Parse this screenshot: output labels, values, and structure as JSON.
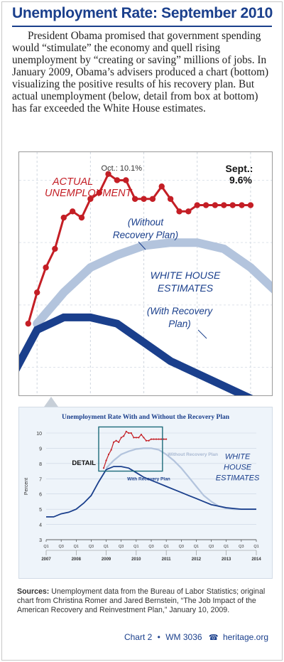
{
  "header": {
    "title": "Unemployment Rate: September 2010",
    "intro": "President Obama promised that government spending would “stimulate” the economy and quell rising unemployment by “creating or saving” millions of jobs. In January 2009, Obama’s advisers produced a chart (bottom) visualizing the positive results of his recovery plan. But actual unemployment (below, detail from box at bottom) has far exceeded the White House estimates."
  },
  "detail_chart": {
    "labels": {
      "actual_line1": "ACTUAL",
      "actual_line2": "UNEMPLOYMENT",
      "peak": "Oct.: 10.1%",
      "latest_line1": "Sept.:",
      "latest_line2": "9.6%",
      "without_line1": "(Without",
      "without_line2": "Recovery Plan)",
      "wh_line1": "WHITE HOUSE",
      "wh_line2": "ESTIMATES",
      "with_line1": "(With Recovery",
      "with_line2": "Plan)"
    },
    "colors": {
      "actual": "#c41e25",
      "without": "#b3c4dd",
      "with": "#1a3f8c"
    }
  },
  "chart_data": {
    "type": "line",
    "title": "Unemployment Rate With and Without the Recovery Plan",
    "ylabel": "Percent",
    "ylim": [
      3,
      10
    ],
    "yticks": [
      "3",
      "4",
      "5",
      "6",
      "7",
      "8",
      "9",
      "10"
    ],
    "xlim": [
      0,
      28
    ],
    "quarter_ticks": [
      "Q1",
      "Q3",
      "Q1",
      "Q3",
      "Q1",
      "Q3",
      "Q1",
      "Q3",
      "Q1",
      "Q3",
      "Q1",
      "Q3",
      "Q1",
      "Q3",
      "Q1"
    ],
    "years": [
      "2007",
      "2008",
      "2009",
      "2010",
      "2011",
      "2012",
      "2013",
      "2014"
    ],
    "detail_label": "DETAIL",
    "wh_label_line1": "WHITE",
    "wh_label_line2": "HOUSE",
    "wh_label_line3": "ESTIMATES",
    "series": [
      {
        "name": "Without Recovery Plan",
        "color": "#b3c4dd",
        "x": [
          8,
          9,
          10,
          11,
          12,
          13,
          14,
          15,
          16,
          17,
          18,
          19,
          20,
          21,
          22,
          23,
          24,
          25,
          26,
          27,
          28
        ],
        "values": [
          7.7,
          8.2,
          8.6,
          8.8,
          8.95,
          9.0,
          9.0,
          8.9,
          8.6,
          8.2,
          7.7,
          7.1,
          6.5,
          5.9,
          5.5,
          5.2,
          5.05,
          5.0,
          5.0,
          5.0,
          5.0
        ]
      },
      {
        "name": "With Recovery Plan",
        "color": "#1a3f8c",
        "x": [
          0,
          1,
          2,
          3,
          4,
          5,
          6,
          7,
          8,
          9,
          10,
          11,
          12,
          13,
          14,
          15,
          16,
          17,
          18,
          19,
          20,
          21,
          22,
          23,
          24,
          25,
          26,
          27,
          28
        ],
        "values": [
          4.5,
          4.5,
          4.7,
          4.8,
          5.0,
          5.4,
          5.9,
          6.8,
          7.6,
          7.8,
          7.8,
          7.7,
          7.4,
          7.1,
          6.9,
          6.7,
          6.5,
          6.3,
          6.1,
          5.9,
          5.7,
          5.5,
          5.3,
          5.2,
          5.1,
          5.05,
          5.0,
          5.0,
          5.0
        ]
      },
      {
        "name": "Actual Unemployment",
        "color": "#c41e25",
        "x": [
          7.67,
          8.0,
          8.33,
          8.67,
          9.0,
          9.33,
          9.67,
          10.0,
          10.33,
          10.67,
          11.0,
          11.33,
          11.67,
          12.0,
          12.33,
          12.67,
          13.0,
          13.33,
          13.67,
          14.0,
          14.33,
          14.67,
          15.0,
          15.33,
          15.67,
          16.0
        ],
        "values": [
          7.7,
          8.2,
          8.6,
          8.9,
          9.4,
          9.5,
          9.4,
          9.7,
          9.8,
          10.1,
          10.0,
          10.0,
          9.7,
          9.7,
          9.7,
          9.9,
          9.7,
          9.5,
          9.5,
          9.6,
          9.6,
          9.6,
          9.6,
          9.6,
          9.6,
          9.6
        ]
      }
    ]
  },
  "sources": {
    "label": "Sources:",
    "text": "Unemployment data from the Bureau of Labor Statistics; original chart from Christina Romer and Jared Bernstein, “The Job Impact of the American Recovery and Reinvestment Plan,” January 10, 2009."
  },
  "footer": {
    "chart": "Chart 2",
    "bullet": "•",
    "wm": "WM 3036",
    "phone_icon": "☎",
    "site": "heritage.org"
  }
}
